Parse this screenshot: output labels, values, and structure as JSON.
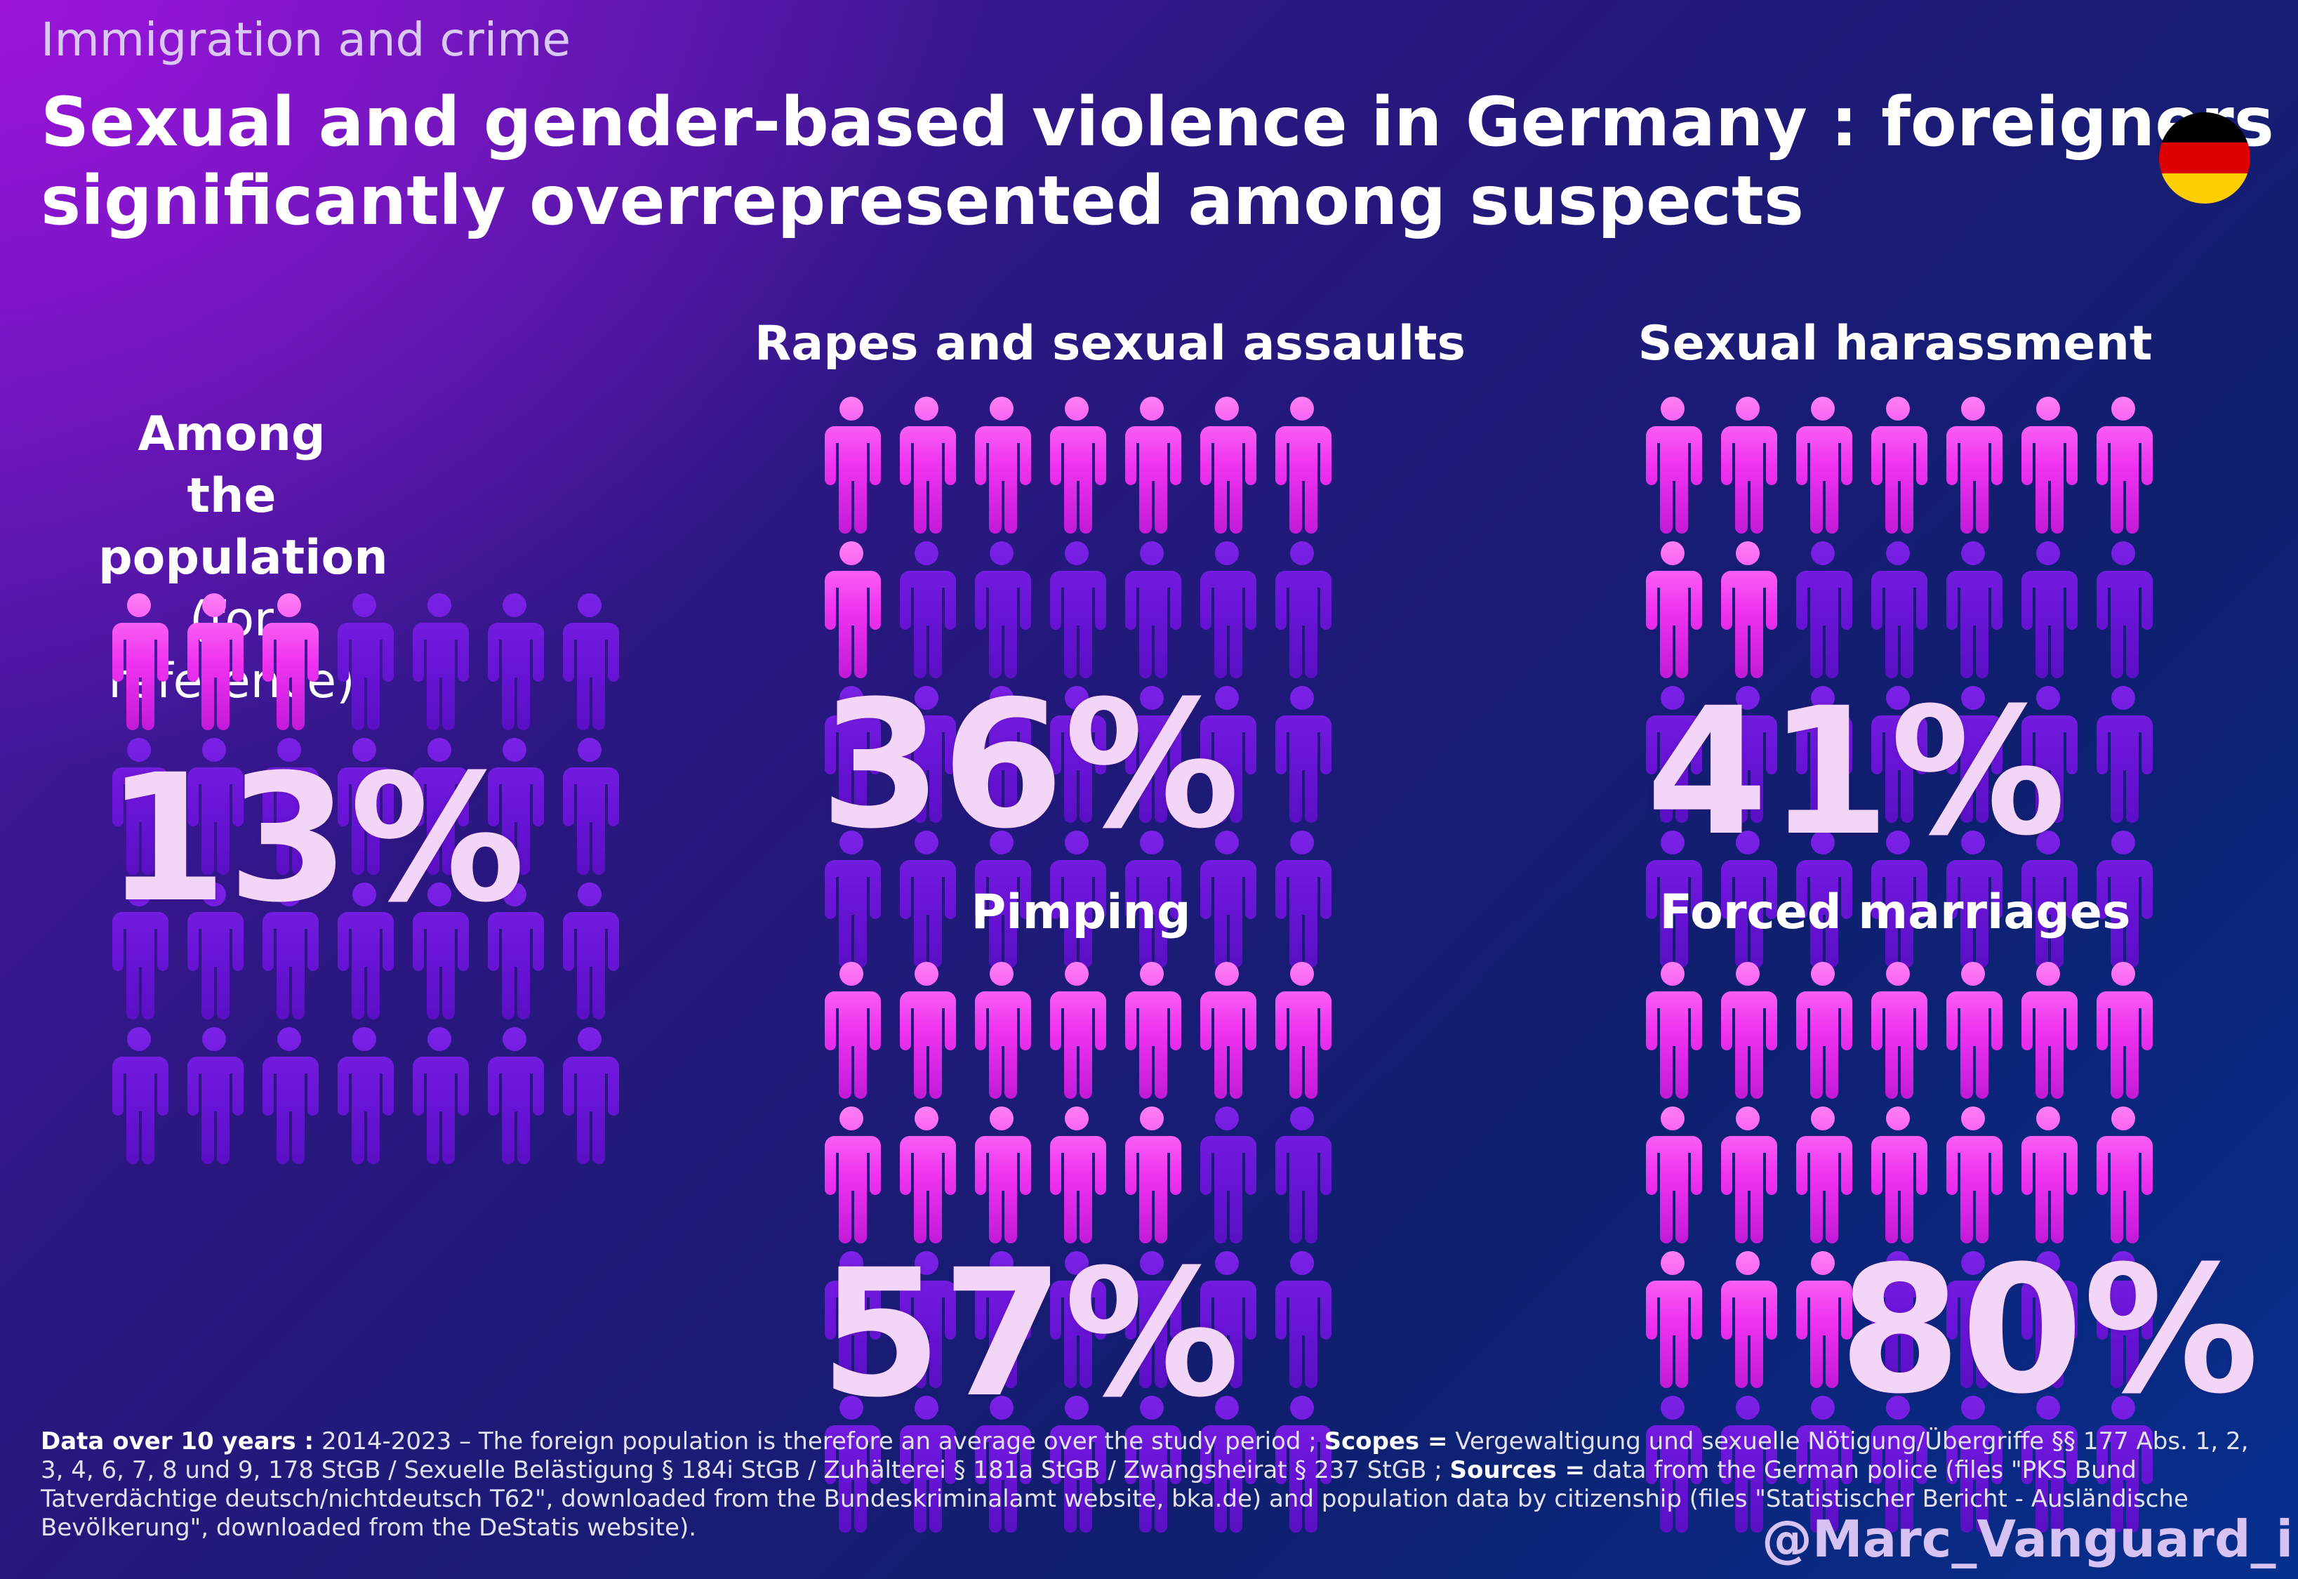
{
  "kicker": "Immigration and crime",
  "title_line1": "Sexual and gender-based violence in Germany : foreigners",
  "title_line2": "significantly overrepresented among suspects",
  "flag_colors": [
    "#000000",
    "#dd0000",
    "#ffce00"
  ],
  "colors": {
    "highlight_person": "#f033f0",
    "base_person": "#6a14d8"
  },
  "population": {
    "label_line1": "Among the",
    "label_line2": "population",
    "label_line3": "(for reference)",
    "percent_label": "13%"
  },
  "panels": [
    {
      "title": "Rapes and sexual assaults",
      "percent_label": "36%"
    },
    {
      "title": "Sexual harassment",
      "percent_label": "41%"
    },
    {
      "title": "Pimping",
      "percent_label": "57%"
    },
    {
      "title": "Forced marriages",
      "percent_label": "80%"
    }
  ],
  "chart_data": {
    "type": "pictogram",
    "title": "Sexual and gender-based violence in Germany : foreigners significantly overrepresented among suspects",
    "unit": "percent of foreigners",
    "icons_total": 28,
    "categories": [
      "Among the population (for reference)",
      "Rapes and sexual assaults",
      "Sexual harassment",
      "Pimping",
      "Forced marriages"
    ],
    "values": [
      13,
      36,
      41,
      57,
      80
    ],
    "highlighted_icons": [
      3,
      8,
      9,
      12,
      17
    ]
  },
  "footnote": {
    "data_label": "Data over 10 years :",
    "data_text": " 2014-2023 – The foreign population is therefore an average over the study period ; ",
    "scopes_label": "Scopes =",
    "scopes_text": " Vergewaltigung und sexuelle Nötigung/Übergriffe §§ 177 Abs. 1, 2, 3, 4, 6, 7, 8 und 9, 178 StGB / Sexuelle Belästigung § 184i StGB / Zuhälterei § 181a StGB / Zwangsheirat § 237 StGB ; ",
    "sources_label": "Sources =",
    "sources_text": " data from the German police (files \"PKS Bund Tatverdächtige deutsch/nichtdeutsch T62\", downloaded from the Bundeskriminalamt website, bka.de) and population data by citizenship (files \"Statistischer Bericht - Ausländische Bevölkerung\", downloaded from the DeStatis website)."
  },
  "handle": "@Marc_Vanguard_i"
}
